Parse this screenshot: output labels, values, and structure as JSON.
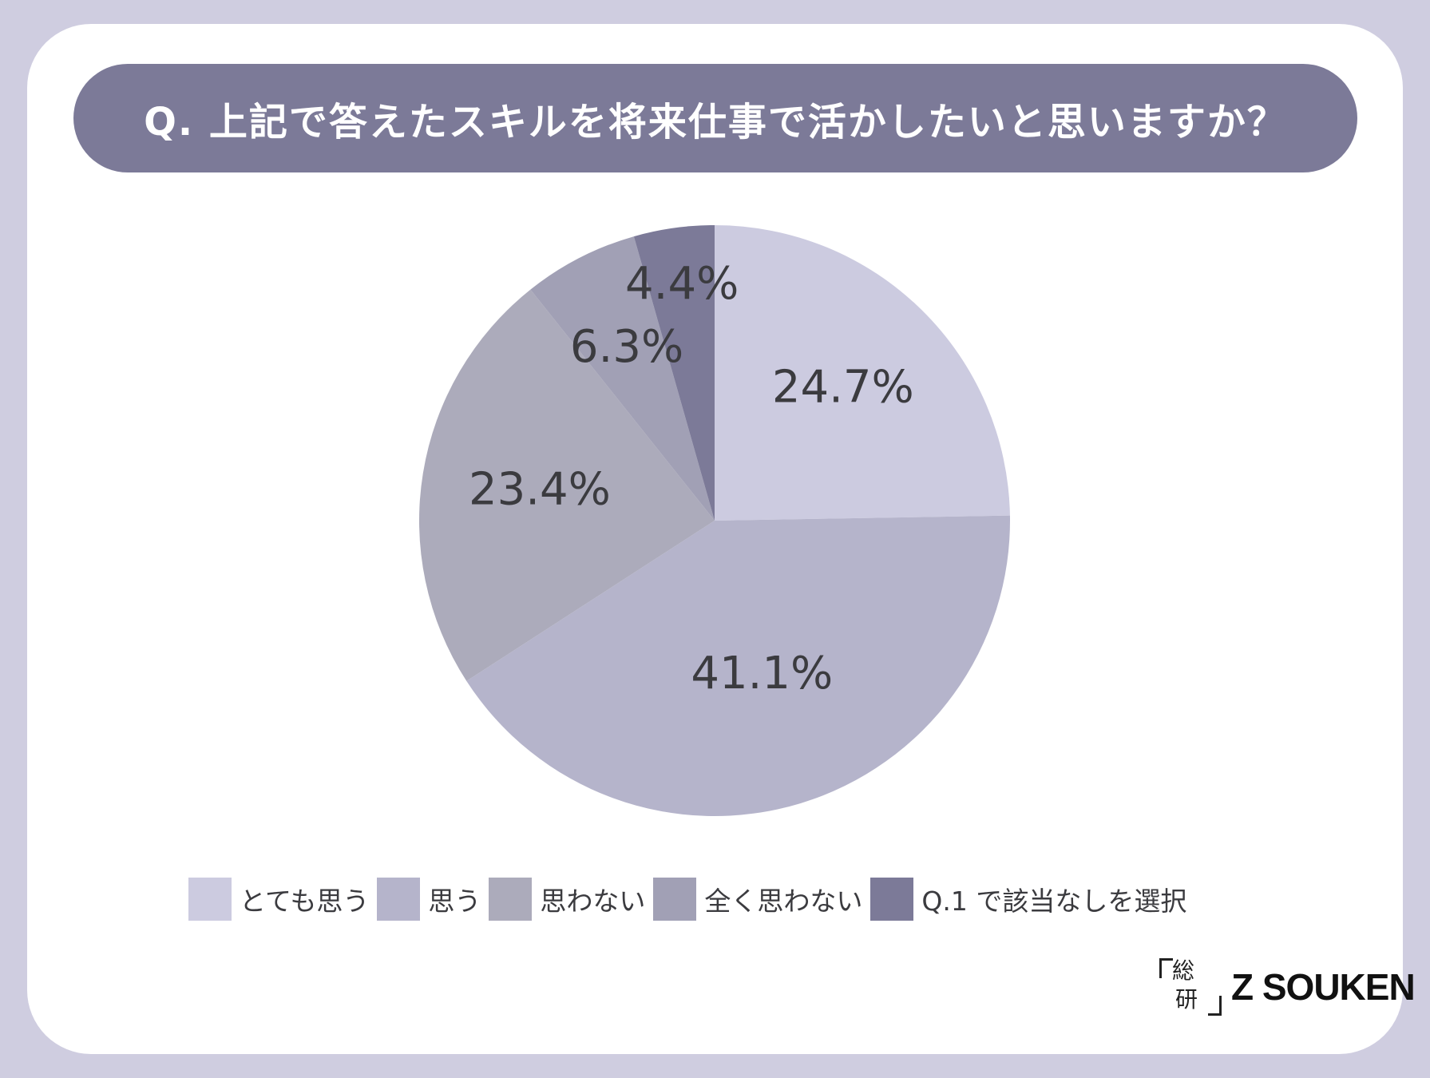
{
  "header": {
    "title": "Q. 上記で答えたスキルを将来仕事で活かしたいと思いますか？"
  },
  "chart_data": {
    "type": "pie",
    "start_angle_deg": 0,
    "direction": "clockwise",
    "slices": [
      {
        "label": "とても思う",
        "value": 24.7,
        "display": "24.7%",
        "color": "#cccbe0"
      },
      {
        "label": "思う",
        "value": 41.1,
        "display": "41.1%",
        "color": "#b5b4cb"
      },
      {
        "label": "思わない",
        "value": 23.4,
        "display": "23.4%",
        "color": "#acabbb"
      },
      {
        "label": "全く思わない",
        "value": 6.3,
        "display": "6.3%",
        "color": "#a1a0b5"
      },
      {
        "label": "Q.1 で該当なしを選択",
        "value": 4.4,
        "display": "4.4%",
        "color": "#7c7a98"
      }
    ],
    "legend_position": "bottom"
  },
  "brand": {
    "mark_char_1": "総",
    "mark_char_2": "研",
    "name": "Z SOUKEN"
  }
}
